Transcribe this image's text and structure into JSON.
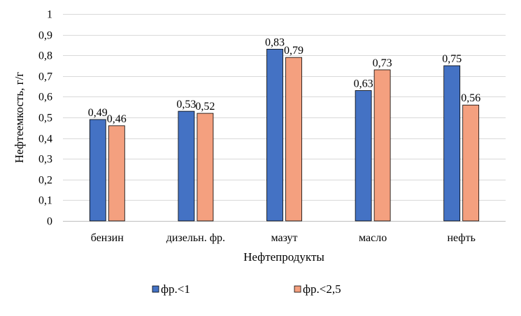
{
  "chart_data": {
    "type": "bar",
    "title": "",
    "xlabel": "Нефтепродукты",
    "ylabel": "Нефтеемкость, г/г",
    "ylim": [
      0,
      1
    ],
    "yticks": [
      "0",
      "0,1",
      "0,2",
      "0,3",
      "0,4",
      "0,5",
      "0,6",
      "0,7",
      "0,8",
      "0,9",
      "1"
    ],
    "grid": true,
    "legend_position": "bottom",
    "categories": [
      "бензин",
      "дизельн. фр.",
      "мазут",
      "масло",
      "нефть"
    ],
    "series": [
      {
        "name": "фр.<1",
        "color": "#4472C4",
        "values": [
          0.49,
          0.53,
          0.83,
          0.63,
          0.75
        ],
        "labels": [
          "0,49",
          "0,53",
          "0,83",
          "0,63",
          "0,75"
        ]
      },
      {
        "name": "фр.<2,5",
        "color": "#F4A07F",
        "values": [
          0.46,
          0.52,
          0.79,
          0.73,
          0.56
        ],
        "labels": [
          "0,46",
          "0,52",
          "0,79",
          "0,73",
          "0,56"
        ]
      }
    ]
  }
}
